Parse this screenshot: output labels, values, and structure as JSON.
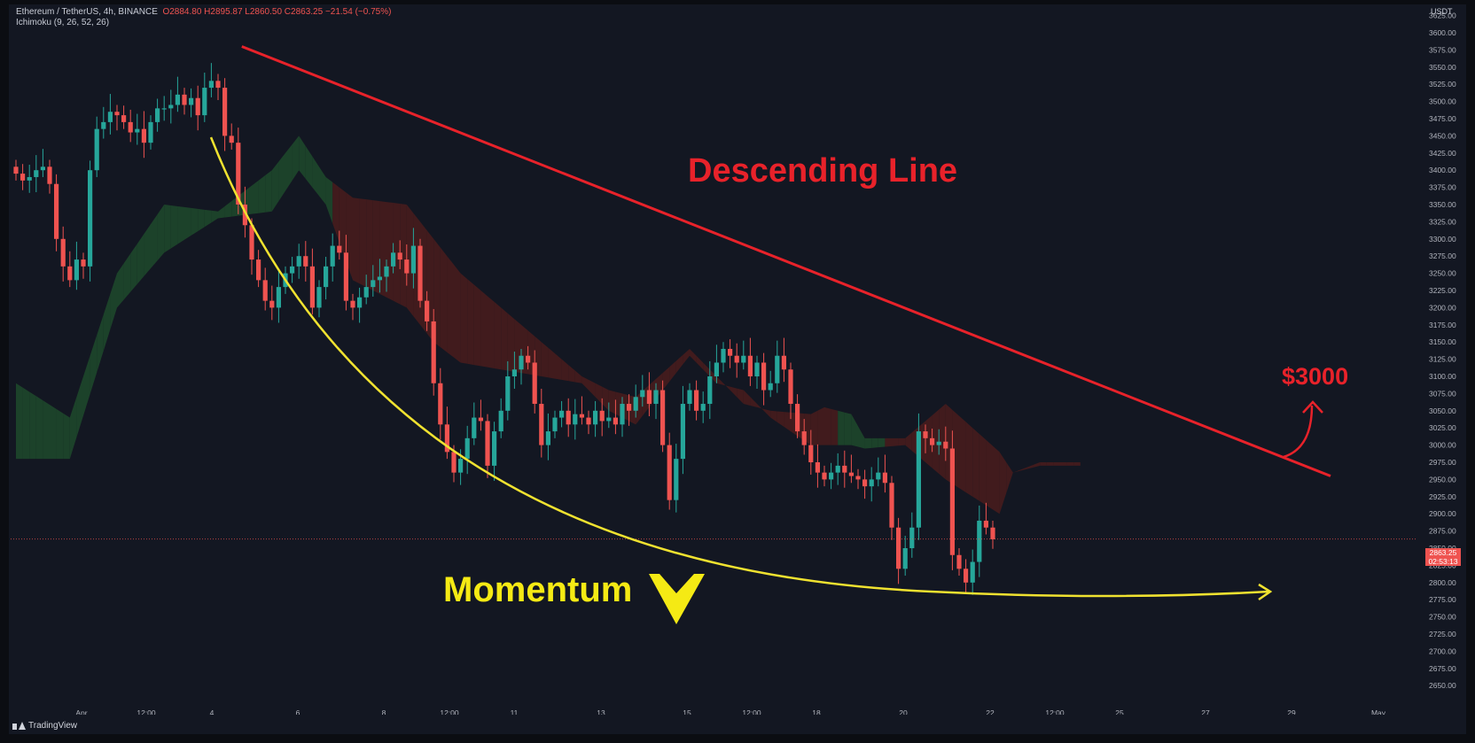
{
  "header": {
    "symbol_line": "Ethereum / TetherUS, 4h, BINANCE",
    "ohlc": "O2884.80 H2895.87 L2860.50 C2863.25 −21.54 (−0.75%)",
    "indicator": "Ichimoku (9, 26, 52, 26)"
  },
  "quote_currency": "USDT",
  "last_price": "2863.25",
  "countdown": "02:53:13",
  "footer": {
    "brand": "TradingView"
  },
  "annotations": {
    "descending_line": "Descending Line",
    "momentum": "Momentum",
    "target": "$3000"
  },
  "colors": {
    "background": "#131722",
    "up": "#26a69a",
    "down": "#ef5350",
    "cloud_bull": "#1f4a2c",
    "cloud_bear": "#4a1c1c",
    "trendline": "#e8222a",
    "curve": "#f0e230",
    "axis_text": "#b2b5be"
  },
  "chart_data": {
    "type": "candlestick",
    "title": "Ethereum / TetherUS, 4h, BINANCE",
    "y_range": [
      2630,
      3640
    ],
    "y_ticks": [
      3625,
      3600,
      3575,
      3550,
      3525,
      3500,
      3475,
      3450,
      3425,
      3400,
      3375,
      3350,
      3325,
      3300,
      3275,
      3250,
      3225,
      3200,
      3175,
      3150,
      3125,
      3100,
      3075,
      3050,
      3025,
      3000,
      2975,
      2950,
      2925,
      2900,
      2875,
      2850,
      2825,
      2800,
      2775,
      2750,
      2725,
      2700,
      2675,
      2650
    ],
    "x_ticks": [
      "Apr",
      "12:00",
      "4",
      "6",
      "8",
      "12:00",
      "11",
      "13",
      "15",
      "12:00",
      "18",
      "20",
      "22",
      "12:00",
      "25",
      "27",
      "29",
      "May"
    ],
    "close_series": [
      3395,
      3385,
      3390,
      3400,
      3405,
      3380,
      3300,
      3260,
      3240,
      3270,
      3260,
      3400,
      3460,
      3470,
      3485,
      3480,
      3470,
      3455,
      3460,
      3440,
      3470,
      3490,
      3490,
      3495,
      3510,
      3495,
      3505,
      3480,
      3520,
      3530,
      3520,
      3450,
      3440,
      3350,
      3320,
      3270,
      3240,
      3210,
      3200,
      3230,
      3250,
      3260,
      3275,
      3260,
      3200,
      3230,
      3260,
      3290,
      3280,
      3210,
      3200,
      3215,
      3230,
      3240,
      3245,
      3260,
      3280,
      3270,
      3250,
      3290,
      3210,
      3180,
      3090,
      3030,
      2990,
      2960,
      2980,
      3010,
      3040,
      3035,
      2970,
      3020,
      3050,
      3100,
      3110,
      3130,
      3120,
      3060,
      3000,
      3020,
      3040,
      3050,
      3030,
      3045,
      3040,
      3030,
      3050,
      3035,
      3040,
      3030,
      3060,
      3050,
      3070,
      3080,
      3060,
      3080,
      3000,
      2920,
      2980,
      3060,
      3080,
      3050,
      3060,
      3100,
      3120,
      3140,
      3130,
      3120,
      3130,
      3100,
      3120,
      3080,
      3090,
      3130,
      3110,
      3060,
      3020,
      3000,
      2975,
      2960,
      2950,
      2960,
      2970,
      2960,
      2955,
      2950,
      2940,
      2950,
      2960,
      2945,
      2880,
      2820,
      2850,
      2880,
      3020,
      3010,
      3000,
      3005,
      2995,
      2840,
      2820,
      2800,
      2830,
      2890,
      2880,
      2863
    ],
    "ichimoku_cloud": {
      "span_a_key": [
        [
          0,
          3090
        ],
        [
          8,
          3040
        ],
        [
          15,
          3250
        ],
        [
          22,
          3350
        ],
        [
          30,
          3340
        ],
        [
          38,
          3400
        ],
        [
          42,
          3450
        ],
        [
          46,
          3390
        ],
        [
          50,
          3360
        ],
        [
          58,
          3350
        ],
        [
          62,
          3300
        ],
        [
          66,
          3250
        ],
        [
          72,
          3200
        ],
        [
          78,
          3150
        ],
        [
          84,
          3100
        ],
        [
          88,
          3080
        ],
        [
          92,
          3070
        ],
        [
          100,
          3140
        ],
        [
          104,
          3100
        ],
        [
          108,
          3060
        ],
        [
          112,
          3050
        ],
        [
          118,
          3045
        ],
        [
          120,
          3055
        ],
        [
          124,
          3045
        ],
        [
          126,
          3010
        ],
        [
          132,
          3010
        ],
        [
          138,
          3060
        ],
        [
          146,
          2990
        ],
        [
          148,
          2960
        ],
        [
          152,
          2975
        ]
      ],
      "span_b_key": [
        [
          0,
          2980
        ],
        [
          8,
          2980
        ],
        [
          15,
          3200
        ],
        [
          22,
          3280
        ],
        [
          30,
          3330
        ],
        [
          38,
          3340
        ],
        [
          42,
          3400
        ],
        [
          46,
          3350
        ],
        [
          50,
          3240
        ],
        [
          58,
          3200
        ],
        [
          62,
          3150
        ],
        [
          66,
          3120
        ],
        [
          72,
          3110
        ],
        [
          78,
          3100
        ],
        [
          84,
          3090
        ],
        [
          88,
          3050
        ],
        [
          92,
          3030
        ],
        [
          100,
          3130
        ],
        [
          104,
          3090
        ],
        [
          108,
          3080
        ],
        [
          112,
          3040
        ],
        [
          118,
          3000
        ],
        [
          120,
          3000
        ],
        [
          124,
          3000
        ],
        [
          126,
          2995
        ],
        [
          132,
          3000
        ],
        [
          138,
          2950
        ],
        [
          146,
          2900
        ],
        [
          148,
          2960
        ],
        [
          152,
          2970
        ]
      ]
    },
    "descending_line": {
      "from": [
        3580,
        18
      ],
      "to": [
        2955,
        150
      ]
    },
    "momentum_curve": "yellow arc from about 3470 near Apr 4 down to about 2800 near Apr 25, curving upward to the right ending in an arrow",
    "grid": false,
    "legend": "none"
  }
}
